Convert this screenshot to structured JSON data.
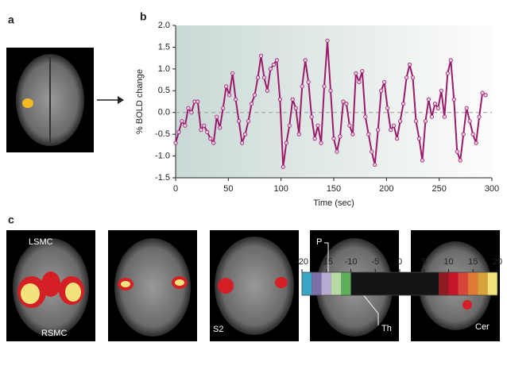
{
  "figure": {
    "panel_labels": [
      "a",
      "b",
      "c"
    ],
    "region_labels": [
      "LSMC",
      "RSMC",
      "S2",
      "P",
      "Th",
      "Cer"
    ]
  },
  "colorbar": {
    "ticks": [
      -20,
      -15,
      -10,
      -5,
      0,
      5,
      10,
      15,
      20
    ],
    "lim": [
      -20,
      20
    ],
    "segments": [
      {
        "from": -20,
        "to": -18,
        "color": "#3aa6c6"
      },
      {
        "from": -18,
        "to": -16,
        "color": "#7d6fa8"
      },
      {
        "from": -16,
        "to": -14,
        "color": "#b7abd2"
      },
      {
        "from": -14,
        "to": -12,
        "color": "#b9d9a4"
      },
      {
        "from": -12,
        "to": -10,
        "color": "#5fae5a"
      },
      {
        "from": -10,
        "to": 8,
        "color": "#141414"
      },
      {
        "from": 8,
        "to": 10,
        "color": "#8e1a22"
      },
      {
        "from": 10,
        "to": 12,
        "color": "#c4182a"
      },
      {
        "from": 12,
        "to": 14,
        "color": "#d8463a"
      },
      {
        "from": 14,
        "to": 16,
        "color": "#e07a36"
      },
      {
        "from": 16,
        "to": 18,
        "color": "#d9a23a"
      },
      {
        "from": 18,
        "to": 20,
        "color": "#f2e37c"
      }
    ]
  },
  "chart_data": {
    "type": "line",
    "xlabel": "Time (sec)",
    "ylabel": "% BOLD change",
    "color": "#9c1a6c",
    "x": [
      0,
      3,
      6,
      9,
      12,
      15,
      18,
      21,
      24,
      27,
      30,
      33,
      36,
      39,
      42,
      45,
      48,
      51,
      54,
      57,
      60,
      63,
      66,
      69,
      72,
      75,
      78,
      81,
      84,
      87,
      90,
      93,
      96,
      99,
      102,
      105,
      108,
      111,
      114,
      117,
      120,
      123,
      126,
      129,
      132,
      135,
      138,
      141,
      144,
      147,
      150,
      153,
      156,
      159,
      162,
      165,
      168,
      171,
      174,
      177,
      180,
      183,
      186,
      189,
      192,
      195,
      198,
      201,
      204,
      207,
      210,
      213,
      216,
      219,
      222,
      225,
      228,
      231,
      234,
      237,
      240,
      243,
      246,
      249,
      252,
      255,
      258,
      261,
      264,
      267,
      270,
      273,
      276,
      279,
      282,
      285,
      288,
      291,
      294
    ],
    "values": [
      -0.7,
      -0.45,
      -0.2,
      -0.3,
      0.1,
      0.0,
      0.25,
      0.25,
      -0.4,
      -0.3,
      -0.45,
      -0.6,
      -0.7,
      -0.1,
      -0.35,
      0.1,
      0.6,
      0.4,
      0.9,
      0.3,
      -0.2,
      -0.7,
      -0.5,
      -0.2,
      0.2,
      0.4,
      0.8,
      1.3,
      0.8,
      0.5,
      1.0,
      1.1,
      1.2,
      0.3,
      -1.25,
      -0.7,
      -0.3,
      0.3,
      0.1,
      -0.5,
      0.6,
      1.2,
      0.7,
      -0.1,
      -0.6,
      -0.3,
      -0.7,
      0.6,
      1.65,
      0.5,
      -0.6,
      -0.9,
      -0.55,
      0.25,
      0.2,
      -0.3,
      -0.5,
      0.9,
      0.7,
      0.95,
      -0.1,
      -0.5,
      -0.9,
      -1.2,
      -0.4,
      0.5,
      0.7,
      0.1,
      -0.4,
      -0.3,
      -0.6,
      -0.2,
      0.2,
      0.8,
      1.1,
      0.8,
      -0.2,
      -0.6,
      -1.1,
      -0.2,
      0.3,
      -0.1,
      0.2,
      0.1,
      0.5,
      -0.1,
      0.9,
      1.2,
      0.3,
      -0.9,
      -1.1,
      -0.5,
      0.1,
      -0.2,
      -0.5,
      -0.7,
      -0.1,
      0.45,
      0.4
    ],
    "xlim": [
      0,
      300
    ],
    "xticks": [
      0,
      50,
      100,
      150,
      200,
      250,
      300
    ],
    "ylim": [
      -1.5,
      2
    ],
    "yticks": [
      -1.5,
      {
        "value": -1,
        "label": "-1.0"
      },
      -0.5,
      {
        "value": 0,
        "label": "0.0"
      },
      0.5,
      {
        "value": 1,
        "label": "1.0"
      },
      1.5,
      {
        "value": 2,
        "label": "2.0"
      }
    ],
    "zero_line": true
  }
}
